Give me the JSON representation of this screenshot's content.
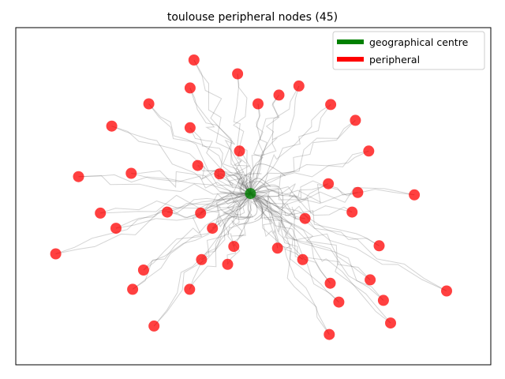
{
  "chart_data": {
    "type": "scatter",
    "title": "toulouse peripheral nodes (45)",
    "xlabel": "",
    "ylabel": "",
    "axes_ticks": false,
    "grid": false,
    "legend": {
      "placement": "top-right",
      "entries": [
        {
          "label": "geographical centre",
          "color": "#008000"
        },
        {
          "label": "peripheral",
          "color": "#ff0000"
        }
      ]
    },
    "xlim": [
      0,
      100
    ],
    "ylim": [
      0,
      100
    ],
    "centre": {
      "name": "geographical centre",
      "x": 49.4,
      "y": 50.8
    },
    "series": [
      {
        "name": "peripheral",
        "color": "#ff0000",
        "points": [
          [
            37.5,
            90.4
          ],
          [
            46.7,
            86.3
          ],
          [
            59.6,
            82.7
          ],
          [
            36.7,
            82.1
          ],
          [
            28.0,
            77.4
          ],
          [
            51.0,
            77.4
          ],
          [
            55.4,
            80.0
          ],
          [
            66.3,
            77.2
          ],
          [
            71.5,
            72.5
          ],
          [
            20.2,
            70.8
          ],
          [
            36.7,
            70.3
          ],
          [
            74.3,
            63.4
          ],
          [
            47.1,
            63.4
          ],
          [
            38.3,
            59.1
          ],
          [
            24.3,
            56.8
          ],
          [
            42.9,
            56.6
          ],
          [
            13.2,
            55.8
          ],
          [
            65.8,
            53.7
          ],
          [
            72.0,
            51.1
          ],
          [
            83.9,
            50.4
          ],
          [
            17.8,
            45.0
          ],
          [
            31.9,
            45.3
          ],
          [
            38.9,
            45.0
          ],
          [
            70.8,
            45.3
          ],
          [
            60.9,
            43.4
          ],
          [
            41.4,
            40.5
          ],
          [
            21.1,
            40.5
          ],
          [
            76.5,
            35.3
          ],
          [
            45.9,
            35.1
          ],
          [
            55.1,
            34.6
          ],
          [
            8.4,
            32.9
          ],
          [
            39.1,
            31.2
          ],
          [
            60.4,
            31.2
          ],
          [
            44.6,
            29.8
          ],
          [
            26.9,
            28.1
          ],
          [
            74.6,
            25.2
          ],
          [
            66.2,
            24.2
          ],
          [
            24.6,
            22.4
          ],
          [
            36.6,
            22.4
          ],
          [
            90.7,
            21.9
          ],
          [
            77.4,
            19.1
          ],
          [
            68.0,
            18.6
          ],
          [
            29.1,
            11.5
          ],
          [
            78.9,
            12.4
          ],
          [
            66.0,
            9.0
          ]
        ]
      }
    ]
  }
}
